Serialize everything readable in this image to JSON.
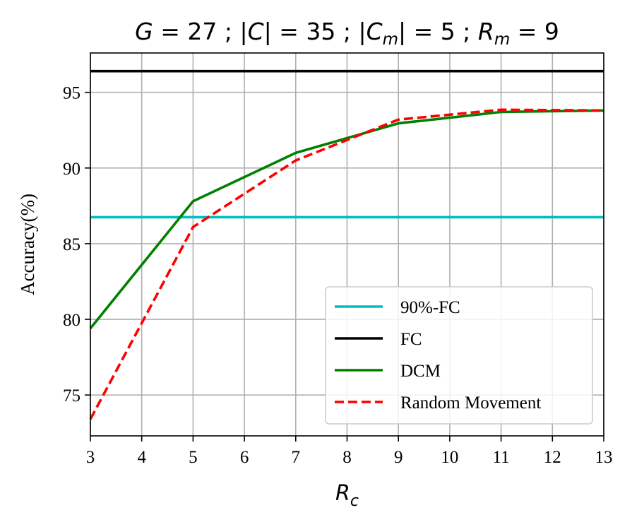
{
  "chart_data": {
    "type": "line",
    "title": {
      "parts": [
        {
          "t": "G",
          "i": true
        },
        {
          "t": " = 27 ; |"
        },
        {
          "t": "C",
          "i": true
        },
        {
          "t": "| = 35 ; |"
        },
        {
          "t": "C",
          "i": true
        },
        {
          "t": "m",
          "i": true,
          "sub": true
        },
        {
          "t": "| = 5 ; "
        },
        {
          "t": "R",
          "i": true
        },
        {
          "t": "m",
          "i": true,
          "sub": true
        },
        {
          "t": " = 9"
        }
      ]
    },
    "xlabel": {
      "main": "R",
      "sub": "c"
    },
    "ylabel": "Accuracy(%)",
    "xlim": [
      3,
      13
    ],
    "ylim": [
      72.3,
      97.6
    ],
    "xticks": [
      3,
      4,
      5,
      6,
      7,
      8,
      9,
      10,
      11,
      12,
      13
    ],
    "yticks": [
      75,
      80,
      85,
      90,
      95
    ],
    "grid": true,
    "legend_position": "lower-right",
    "series": [
      {
        "name": "90%-FC",
        "color": "#00bfbf",
        "dash": "solid",
        "x": [
          3,
          13
        ],
        "y": [
          86.75,
          86.75
        ]
      },
      {
        "name": "FC",
        "color": "#000000",
        "dash": "solid",
        "x": [
          3,
          13
        ],
        "y": [
          96.4,
          96.4
        ]
      },
      {
        "name": "DCM",
        "color": "#008000",
        "dash": "solid",
        "x": [
          3,
          5,
          7,
          9,
          11,
          13
        ],
        "y": [
          79.4,
          87.8,
          91.0,
          92.95,
          93.7,
          93.8
        ]
      },
      {
        "name": "Random Movement",
        "color": "#ff0000",
        "dash": "dashed",
        "x": [
          3,
          5,
          7,
          9,
          11,
          13
        ],
        "y": [
          73.4,
          86.1,
          90.5,
          93.2,
          93.85,
          93.8
        ]
      }
    ]
  }
}
